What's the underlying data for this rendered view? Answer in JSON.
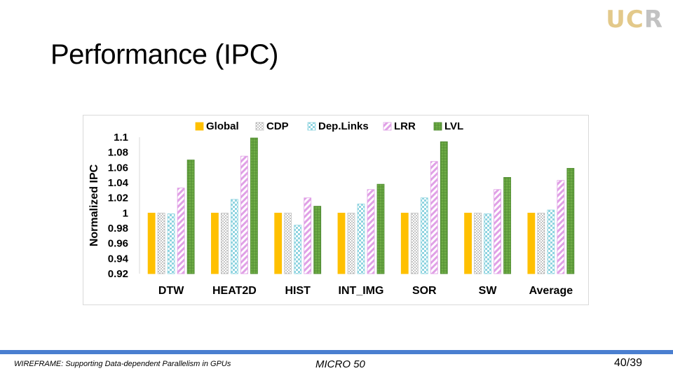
{
  "slide": {
    "title": "Performance (IPC)",
    "logo": {
      "u": "U",
      "c": "C",
      "r": "R"
    },
    "footer": {
      "left": "WIREFRAME: Supporting Data-dependent Parallelism in GPUs",
      "center": "MICRO 50",
      "page": "40/39"
    }
  },
  "colors": {
    "footer_bar": "#4a7fd0",
    "Global": "#ffc000",
    "CDP": "#bfbfbf",
    "DepLinks": "#8fd4e0",
    "LRR": "#e0a0e6",
    "LVL": "#70ad47"
  },
  "chart_data": {
    "type": "bar",
    "title": "",
    "xlabel": "",
    "ylabel": "Normalized IPC",
    "ylim": [
      0.92,
      1.1
    ],
    "yticks": [
      0.92,
      0.94,
      0.96,
      0.98,
      1,
      1.02,
      1.04,
      1.06,
      1.08,
      1.1
    ],
    "ytick_labels": [
      "0.92",
      "0.94",
      "0.96",
      "0.98",
      "1",
      "1.02",
      "1.04",
      "1.06",
      "1.08",
      "1.1"
    ],
    "grid": false,
    "legend_position": "top",
    "categories": [
      "DTW",
      "HEAT2D",
      "HIST",
      "INT_IMG",
      "SOR",
      "SW",
      "Average"
    ],
    "series": [
      {
        "name": "Global",
        "pattern": "solid",
        "values": [
          1.0,
          1.0,
          1.0,
          1.0,
          1.0,
          1.0,
          1.0
        ]
      },
      {
        "name": "CDP",
        "pattern": "dots",
        "values": [
          1.0,
          1.0,
          1.0,
          1.0,
          1.0,
          1.0,
          1.0
        ]
      },
      {
        "name": "Dep.Links",
        "pattern": "checker",
        "values": [
          0.999,
          1.018,
          0.984,
          1.012,
          1.02,
          0.999,
          1.004
        ]
      },
      {
        "name": "LRR",
        "pattern": "diagonal",
        "values": [
          1.033,
          1.075,
          1.02,
          1.031,
          1.068,
          1.031,
          1.043
        ]
      },
      {
        "name": "LVL",
        "pattern": "crosshatch",
        "values": [
          1.07,
          1.099,
          1.009,
          1.038,
          1.094,
          1.047,
          1.059
        ]
      }
    ]
  }
}
